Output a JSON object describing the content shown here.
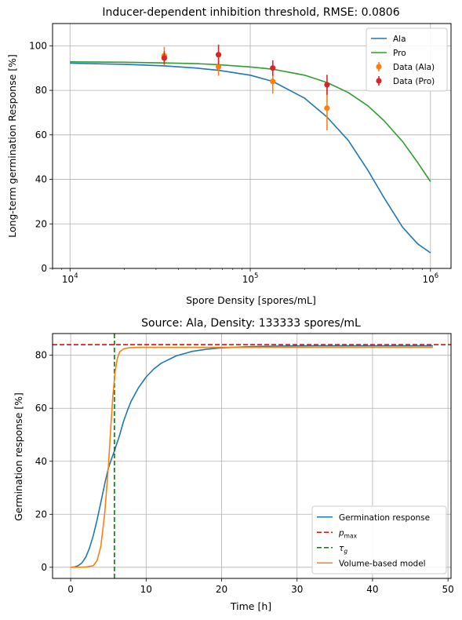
{
  "chart_data": [
    {
      "type": "line",
      "title": "Inducer-dependent inhibition threshold, RMSE: 0.0806",
      "xlabel": "Spore Density [spores/mL]",
      "ylabel": "Long-term germination Response [%]",
      "xscale": "log",
      "xlim": [
        8000,
        1300000
      ],
      "ylim": [
        0,
        110
      ],
      "xticks": [
        10000,
        100000,
        1000000
      ],
      "xtick_labels": [
        {
          "base": "10",
          "exp": "4"
        },
        {
          "base": "10",
          "exp": "5"
        },
        {
          "base": "10",
          "exp": "6"
        }
      ],
      "yticks": [
        0,
        20,
        40,
        60,
        80,
        100
      ],
      "ytick_labels": [
        "0",
        "20",
        "40",
        "60",
        "80",
        "100"
      ],
      "grid": true,
      "legend_position": "top-right",
      "series": [
        {
          "name": "Ala",
          "kind": "line",
          "color": "#1f77b4",
          "x": [
            10000,
            20000,
            33333,
            50000,
            66667,
            100000,
            133333,
            200000,
            266667,
            350000,
            450000,
            550000,
            700000,
            850000,
            1000000
          ],
          "y": [
            92.2,
            91.7,
            91.0,
            90.0,
            89.0,
            86.8,
            84.0,
            76.5,
            68.0,
            57.5,
            44.0,
            32.0,
            18.5,
            11.0,
            7.0
          ]
        },
        {
          "name": "Pro",
          "kind": "line",
          "color": "#2ca02c",
          "x": [
            10000,
            20000,
            33333,
            50000,
            66667,
            100000,
            133333,
            200000,
            266667,
            350000,
            450000,
            550000,
            700000,
            850000,
            1000000
          ],
          "y": [
            92.8,
            92.6,
            92.3,
            92.0,
            91.5,
            90.5,
            89.5,
            86.8,
            83.5,
            79.0,
            73.0,
            66.5,
            57.0,
            47.5,
            39.0
          ]
        },
        {
          "name": "Data (Ala)",
          "kind": "errorbar",
          "color": "#ff7f0e",
          "x": [
            33333,
            66667,
            133333,
            266667
          ],
          "y": [
            95.5,
            90.5,
            84.0,
            72.0
          ],
          "err": [
            4.0,
            4.0,
            5.5,
            10.0
          ]
        },
        {
          "name": "Data (Pro)",
          "kind": "errorbar",
          "color": "#d62728",
          "x": [
            33333,
            66667,
            133333,
            266667
          ],
          "y": [
            94.5,
            96.0,
            90.0,
            82.5
          ],
          "err": [
            3.0,
            4.5,
            3.5,
            4.5
          ]
        }
      ]
    },
    {
      "type": "line",
      "title": "Source: Ala, Density: 133333 spores/mL",
      "xlabel": "Time [h]",
      "ylabel": "Germination response [%]",
      "xlim": [
        -2.4,
        50.4
      ],
      "ylim": [
        -4.2,
        88.2
      ],
      "xticks": [
        0,
        10,
        20,
        30,
        40,
        50
      ],
      "xtick_labels": [
        "0",
        "10",
        "20",
        "30",
        "40",
        "50"
      ],
      "yticks": [
        0,
        20,
        40,
        60,
        80
      ],
      "ytick_labels": [
        "0",
        "20",
        "40",
        "60",
        "80"
      ],
      "grid": true,
      "legend_position": "bottom-right",
      "series": [
        {
          "name": "Germination response",
          "kind": "line",
          "color": "#1f77b4",
          "x": [
            0,
            0.5,
            1,
            1.5,
            2,
            2.5,
            3,
            3.5,
            4,
            4.5,
            5,
            5.5,
            5.8,
            6.5,
            7,
            7.5,
            8,
            9,
            10,
            11,
            12,
            14,
            16,
            18,
            20,
            24,
            28,
            32,
            40,
            48
          ],
          "y": [
            0,
            0.1,
            0.6,
            1.7,
            3.8,
            7.3,
            12.0,
            17.9,
            24.5,
            31.3,
            37.5,
            41.6,
            43.9,
            50.0,
            55.0,
            59.0,
            62.6,
            67.8,
            71.8,
            74.8,
            77.0,
            79.8,
            81.4,
            82.3,
            82.8,
            83.3,
            83.5,
            83.6,
            83.6,
            83.6
          ]
        },
        {
          "name": "p_max",
          "kind": "hline",
          "color": "#ff0000",
          "dash": true,
          "y": 84.0
        },
        {
          "name": "τ_g",
          "kind": "vline",
          "color": "#008000",
          "dash": true,
          "x": 5.8
        },
        {
          "name": "Volume-based model",
          "kind": "line",
          "color": "#ff7f0e",
          "x": [
            0,
            1,
            2,
            3,
            3.5,
            4,
            4.5,
            5,
            5.3,
            5.6,
            5.9,
            6.2,
            6.5,
            7,
            7.5,
            8,
            9,
            10,
            12,
            20,
            30,
            48
          ],
          "y": [
            0,
            0,
            0.1,
            0.6,
            2.5,
            8.0,
            20.0,
            38.0,
            52.0,
            65.0,
            74.0,
            79.0,
            81.3,
            82.4,
            82.7,
            82.9,
            83.0,
            83.0,
            83.0,
            83.0,
            83.0,
            83.0
          ]
        }
      ]
    }
  ]
}
